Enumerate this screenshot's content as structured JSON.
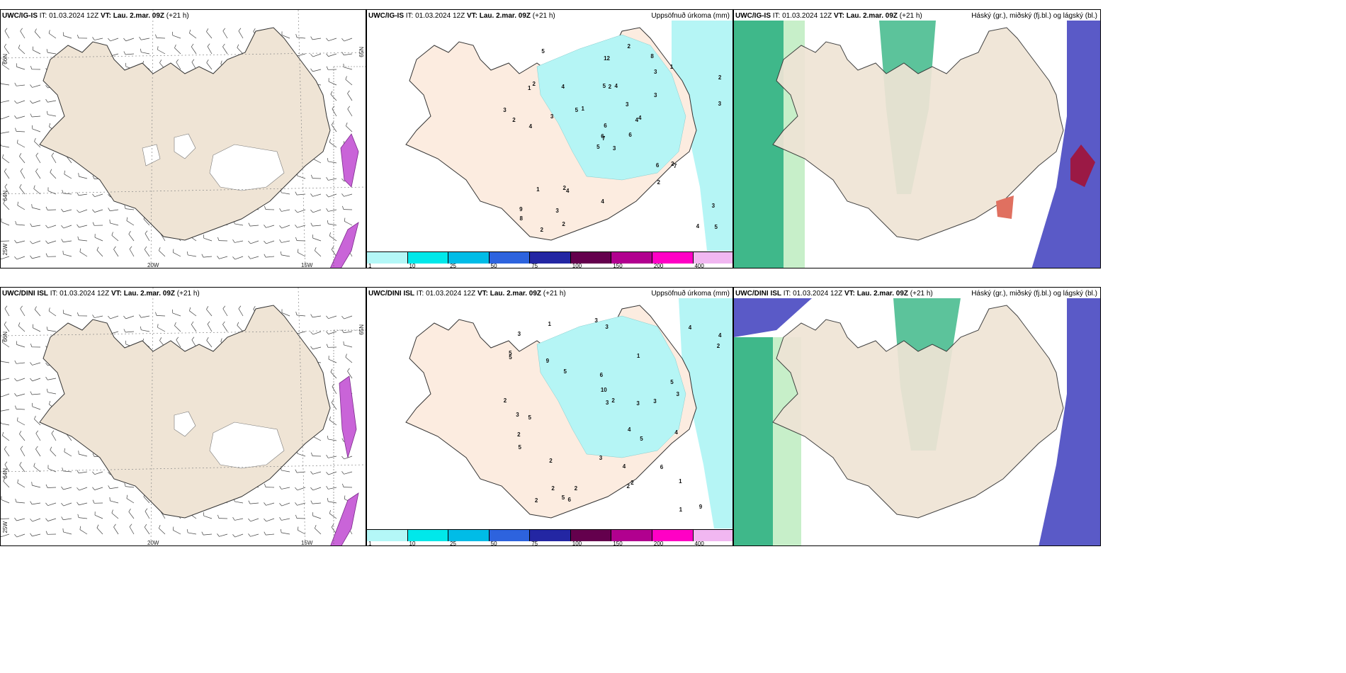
{
  "rows": [
    {
      "model": "UWC/IG-IS",
      "issue_label": "IT:",
      "issue_time": "01.03.2024 12Z",
      "valid_label": "VT:",
      "valid_time": "Lau. 2.mar. 09Z",
      "lead": "(+21 h)",
      "precip_values": [
        "3",
        "1",
        "7",
        "9",
        "4",
        "4",
        "8",
        "4",
        "3",
        "6",
        "5",
        "5",
        "4",
        "2",
        "5",
        "3",
        "2",
        "5",
        "3",
        "1",
        "1",
        "8",
        "3",
        "2",
        "4",
        "7",
        "2",
        "12",
        "2",
        "6",
        "3",
        "6",
        "4",
        "6",
        "4",
        "1",
        "2",
        "4",
        "3",
        "2",
        "2",
        "5",
        "3",
        "2",
        "2",
        "3"
      ]
    },
    {
      "model": "UWC/DINI ISL",
      "issue_label": "IT:",
      "issue_time": "01.03.2024 12Z",
      "valid_label": "VT:",
      "valid_time": "Lau. 2.mar. 09Z",
      "lead": "(+21 h)",
      "precip_values": [
        "2",
        "3",
        "5",
        "4",
        "5",
        "9",
        "5",
        "1",
        "6",
        "4",
        "2",
        "4",
        "3",
        "5",
        "9",
        "2",
        "2",
        "3",
        "4",
        "3",
        "6",
        "1",
        "2",
        "10",
        "2",
        "3",
        "5",
        "1",
        "6",
        "2",
        "2",
        "1",
        "3",
        "2",
        "5",
        "5",
        "3",
        "3",
        "2",
        "5",
        "4",
        "3"
      ]
    }
  ],
  "precip_title": "Uppsöfnuð úrkoma (mm)",
  "cloud_title": "Háský (gr.), miðský (fj.bl.) og lágský (bl.)",
  "axis_labels": {
    "lat66": "66N",
    "lat64": "64N",
    "lon25": "25W",
    "lon20": "20W",
    "lon15": "15W",
    "lat65": "65N"
  },
  "colorbar": {
    "labels": [
      "1",
      "10",
      "25",
      "50",
      "75",
      "100",
      "150",
      "200",
      "400"
    ],
    "colors": [
      "#b4f7f7",
      "#00e8ea",
      "#00bce7",
      "#2d63de",
      "#2326a3",
      "#64004d",
      "#b1008f",
      "#ff00c5",
      "#f1b7f1"
    ]
  },
  "colors": {
    "land": "#efe4d5",
    "precip_light": "#b5f5f5",
    "high_cloud": "#3fb88a",
    "mid_cloud": "#c7efc9",
    "low_cloud": "#5a5ac7",
    "heavy_red": "#9b1945"
  }
}
